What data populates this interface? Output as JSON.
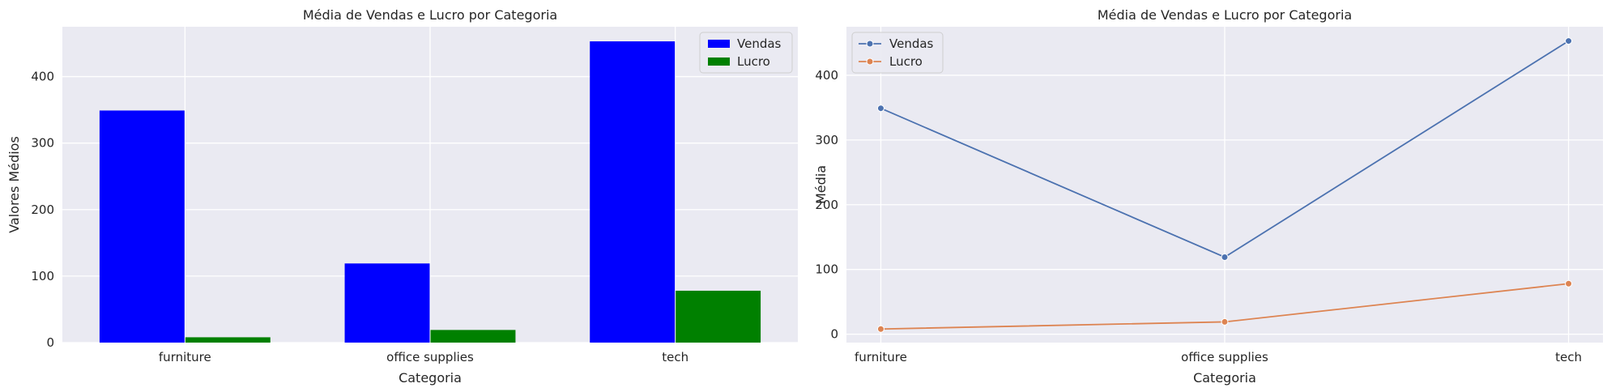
{
  "chart_data": [
    {
      "type": "bar",
      "title": "Média de Vendas e Lucro por Categoria",
      "xlabel": "Categoria",
      "ylabel": "Valores Médios",
      "categories": [
        "furniture",
        "office supplies",
        "tech"
      ],
      "ylim": [
        0,
        475
      ],
      "yticks": [
        0,
        100,
        200,
        300,
        400
      ],
      "grid": true,
      "legend_position": "top-right",
      "series": [
        {
          "name": "Vendas",
          "color": "#0000ff",
          "values": [
            349,
            119,
            453
          ]
        },
        {
          "name": "Lucro",
          "color": "#008000",
          "values": [
            8,
            19,
            78
          ]
        }
      ]
    },
    {
      "type": "line",
      "title": "Média de Vendas e Lucro por Categoria",
      "xlabel": "Categoria",
      "ylabel": "Média",
      "categories": [
        "furniture",
        "office supplies",
        "tech"
      ],
      "ylim": [
        -13,
        475
      ],
      "yticks": [
        0,
        100,
        200,
        300,
        400
      ],
      "grid": true,
      "legend_position": "top-left",
      "series": [
        {
          "name": "Vendas",
          "color": "#4c72b0",
          "values": [
            349,
            119,
            453
          ]
        },
        {
          "name": "Lucro",
          "color": "#dd8452",
          "values": [
            8,
            19,
            78
          ]
        }
      ]
    }
  ]
}
